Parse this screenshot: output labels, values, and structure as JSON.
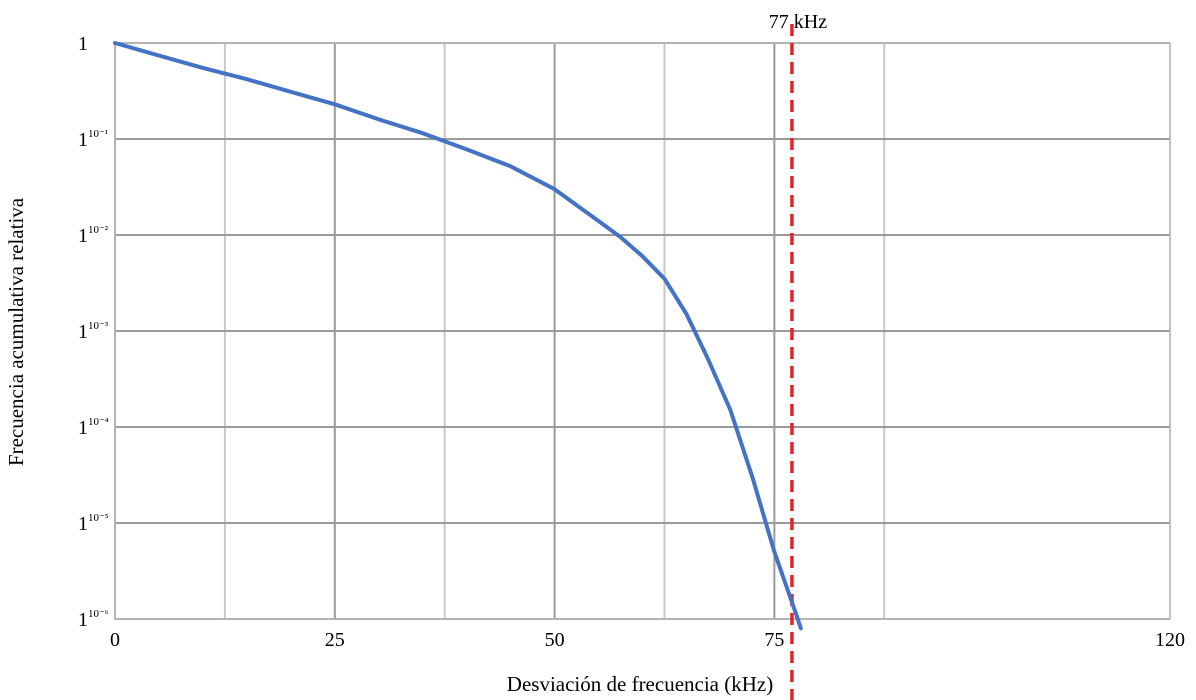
{
  "chart_data": {
    "type": "line",
    "xlabel": "Desviación de frecuencia (kHz)",
    "ylabel": "Frecuencia acumulativa relativa",
    "xlim": [
      0,
      120
    ],
    "ylim_exponent": [
      -6,
      0
    ],
    "yscale": "log10",
    "grid": true,
    "x_ticks": [
      0,
      25,
      50,
      75,
      120
    ],
    "x_gridlines": [
      0,
      12.5,
      25,
      37.5,
      50,
      62.5,
      75,
      87.5,
      120
    ],
    "y_ticks": [
      {
        "exp": 0,
        "base": "1",
        "sup": ""
      },
      {
        "exp": -1,
        "base": "1",
        "sup": "10⁻¹"
      },
      {
        "exp": -2,
        "base": "1",
        "sup": "10⁻²"
      },
      {
        "exp": -3,
        "base": "1",
        "sup": "10⁻³"
      },
      {
        "exp": -4,
        "base": "1",
        "sup": "10⁻⁴"
      },
      {
        "exp": -5,
        "base": "1",
        "sup": "10⁻⁵"
      },
      {
        "exp": -6,
        "base": "1",
        "sup": "10⁻⁶"
      }
    ],
    "series": [
      {
        "color": "#4472c4",
        "points": [
          [
            0,
            1.0
          ],
          [
            5,
            0.74
          ],
          [
            10,
            0.55
          ],
          [
            15,
            0.42
          ],
          [
            20,
            0.31
          ],
          [
            25,
            0.23
          ],
          [
            30,
            0.16
          ],
          [
            35,
            0.115
          ],
          [
            40,
            0.078
          ],
          [
            45,
            0.052
          ],
          [
            50,
            0.03
          ],
          [
            55,
            0.014
          ],
          [
            57.5,
            0.0095
          ],
          [
            60,
            0.006
          ],
          [
            62.5,
            0.0035
          ],
          [
            65,
            0.0015
          ],
          [
            67.5,
            0.0005
          ],
          [
            70,
            0.00015
          ],
          [
            72.5,
            3e-05
          ],
          [
            75,
            5e-06
          ],
          [
            77.5,
            1.1e-06
          ],
          [
            78,
            8e-07
          ]
        ]
      }
    ],
    "markers": [
      {
        "x": 77,
        "label": "77 kHz",
        "color": "#e8202a",
        "style": "dashed"
      }
    ]
  }
}
